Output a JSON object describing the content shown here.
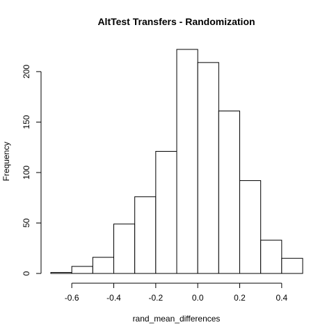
{
  "chart_data": {
    "type": "bar",
    "title": "AltTest Transfers - Randomization",
    "xlabel": "rand_mean_differences",
    "ylabel": "Frequency",
    "bin_edges": [
      -0.7,
      -0.6,
      -0.5,
      -0.4,
      -0.3,
      -0.2,
      -0.1,
      0.0,
      0.1,
      0.2,
      0.3,
      0.4,
      0.5
    ],
    "values": [
      1,
      7,
      16,
      49,
      76,
      121,
      222,
      209,
      161,
      92,
      33,
      15
    ],
    "xlim": [
      -0.7,
      0.5
    ],
    "ylim": [
      0,
      222
    ],
    "x_ticks": [
      -0.6,
      -0.4,
      -0.2,
      0.0,
      0.2,
      0.4
    ],
    "x_tick_labels": [
      "-0.6",
      "-0.4",
      "-0.2",
      "0.0",
      "0.2",
      "0.4"
    ],
    "y_ticks": [
      0,
      50,
      100,
      150,
      200
    ],
    "y_tick_labels": [
      "0",
      "50",
      "100",
      "150",
      "200"
    ],
    "bar_fill": "#ffffff",
    "bar_stroke": "#000000",
    "grid": false,
    "legend": "none"
  }
}
